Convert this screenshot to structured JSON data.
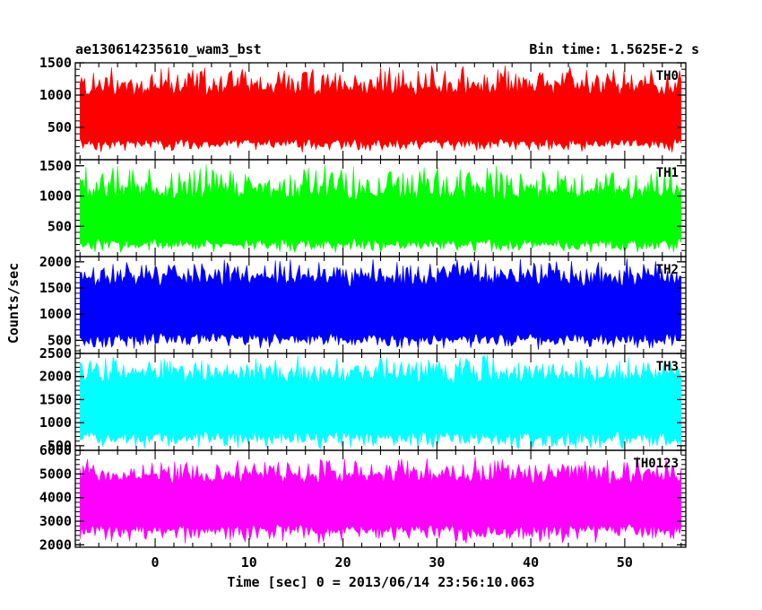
{
  "chart_data": {
    "type": "line",
    "title": "ae130614235610_wam3_bst",
    "bin_time": "Bin time: 1.5625E-2 s",
    "xlabel": "Time [sec] 0 = 2013/06/14 23:56:10.063",
    "ylabel": "Counts/sec",
    "xlim": [
      -8.5,
      56.5
    ],
    "data_x_range": [
      -8.0,
      56.0
    ],
    "x_ticks": [
      "0",
      "10",
      "20",
      "30",
      "40",
      "50"
    ],
    "x_tick_values": [
      0,
      10,
      20,
      30,
      40,
      50
    ],
    "grid": false,
    "legend": "none",
    "panels": [
      {
        "name": "TH0",
        "color": "#ff0000",
        "ylim": [
          0,
          1500
        ],
        "y_ticks": [
          "500",
          "1000",
          "1500"
        ],
        "y_tick_values": [
          500,
          1000,
          1500
        ],
        "signal": {
          "min": 100,
          "low": 230,
          "mean": 650,
          "high": 1150,
          "max": 1500
        }
      },
      {
        "name": "TH1",
        "color": "#00ff00",
        "ylim": [
          0,
          1600
        ],
        "y_ticks": [
          "500",
          "1000",
          "1500"
        ],
        "y_tick_values": [
          500,
          1000,
          1500
        ],
        "signal": {
          "min": 50,
          "low": 200,
          "mean": 600,
          "high": 1100,
          "max": 1550
        }
      },
      {
        "name": "TH2",
        "color": "#0000ff",
        "ylim": [
          250,
          2100
        ],
        "y_ticks": [
          "500",
          "1000",
          "1500",
          "2000"
        ],
        "y_tick_values": [
          500,
          1000,
          1500,
          2000
        ],
        "signal": {
          "min": 300,
          "low": 500,
          "mean": 1100,
          "high": 1750,
          "max": 2100
        }
      },
      {
        "name": "TH3",
        "color": "#00ffff",
        "ylim": [
          400,
          2500
        ],
        "y_ticks": [
          "500",
          "1000",
          "1500",
          "2000",
          "2500"
        ],
        "y_tick_values": [
          500,
          1000,
          1500,
          2000,
          2500
        ],
        "signal": {
          "min": 400,
          "low": 650,
          "mean": 1350,
          "high": 2100,
          "max": 2500
        }
      },
      {
        "name": "TH0123",
        "color": "#ff00ff",
        "ylim": [
          1900,
          6000
        ],
        "y_ticks": [
          "2000",
          "3000",
          "4000",
          "5000",
          "6000"
        ],
        "y_tick_values": [
          2000,
          3000,
          4000,
          5000,
          6000
        ],
        "signal": {
          "min": 2000,
          "low": 2600,
          "mean": 3800,
          "high": 5000,
          "max": 5800
        }
      }
    ]
  }
}
